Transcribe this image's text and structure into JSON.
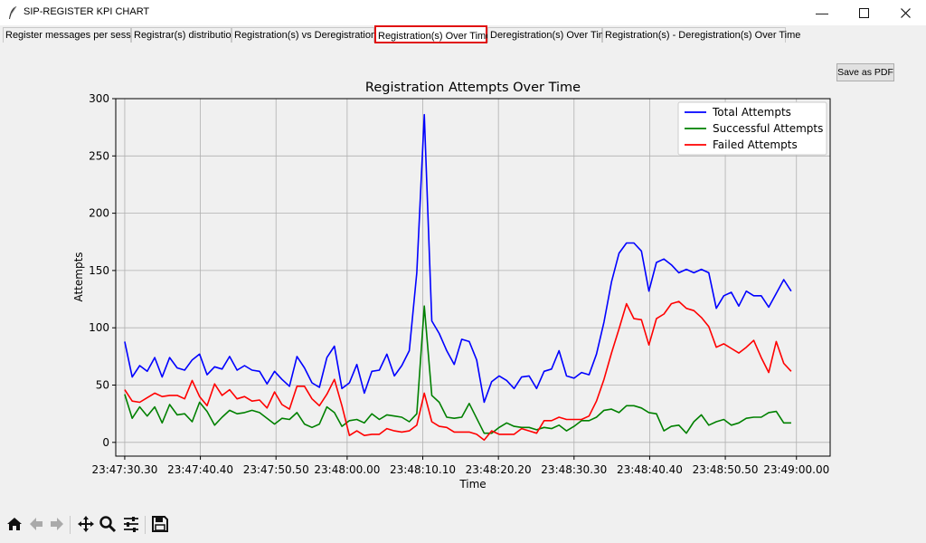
{
  "window": {
    "title": "SIP-REGISTER KPI CHART",
    "minimize": "—",
    "maximize": "☐",
    "close": "✕"
  },
  "tabs": [
    "Register messages per session",
    "Registrar(s) distribution",
    "Registration(s) vs Deregistration(s)",
    "Registration(s) Over Time",
    "Deregistration(s) Over Time",
    "Registration(s) - Deregistration(s) Over Time"
  ],
  "active_tab_index": 3,
  "save_pdf_label": "Save as PDF",
  "toolbar": [
    {
      "name": "home-icon"
    },
    {
      "name": "back-arrow-icon"
    },
    {
      "name": "forward-arrow-icon"
    },
    {
      "name": "pan-icon"
    },
    {
      "name": "zoom-icon"
    },
    {
      "name": "configure-subplots-icon"
    },
    {
      "name": "save-icon"
    }
  ],
  "chart_data": {
    "type": "line",
    "title": "Registration Attempts Over Time",
    "xlabel": "Time",
    "ylabel": "Attempts",
    "ylim": [
      -12,
      300
    ],
    "yticks": [
      0,
      50,
      100,
      150,
      200,
      250,
      300
    ],
    "xlim": [
      -1.2,
      94.2
    ],
    "xticks": [
      {
        "label": "23:47:30.30",
        "x": 0
      },
      {
        "label": "23:47:40.40",
        "x": 10.1
      },
      {
        "label": "23:47:50.50",
        "x": 20.2
      },
      {
        "label": "23:48:00.00",
        "x": 29.7
      },
      {
        "label": "23:48:10.10",
        "x": 39.8
      },
      {
        "label": "23:48:20.20",
        "x": 49.9
      },
      {
        "label": "23:48:30.30",
        "x": 60
      },
      {
        "label": "23:48:40.40",
        "x": 70.1
      },
      {
        "label": "23:48:50.50",
        "x": 80.2
      },
      {
        "label": "23:49:00.00",
        "x": 89.7
      }
    ],
    "grid": true,
    "legend_position": "upper right",
    "series": [
      {
        "name": "Total Attempts",
        "color": "#0000ff",
        "values": [
          88,
          57,
          67,
          62,
          74,
          57,
          74,
          65,
          63,
          72,
          77,
          59,
          66,
          64,
          75,
          63,
          67,
          63,
          62,
          51,
          62,
          55,
          49,
          75,
          65,
          52,
          48,
          74,
          84,
          47,
          52,
          68,
          43,
          62,
          63,
          77,
          58,
          67,
          80,
          148,
          286,
          106,
          95,
          80,
          68,
          90,
          88,
          72,
          35,
          53,
          58,
          54,
          47,
          57,
          58,
          47,
          62,
          64,
          80,
          58,
          56,
          61,
          59,
          77,
          105,
          140,
          165,
          174,
          174,
          167,
          132,
          157,
          160,
          155,
          148,
          151,
          148,
          151,
          148,
          117,
          128,
          131,
          119,
          132,
          128,
          128,
          118,
          130,
          142,
          132
        ]
      },
      {
        "name": "Successful Attempts",
        "color": "#008000",
        "values": [
          42,
          21,
          31,
          23,
          31,
          17,
          33,
          24,
          25,
          18,
          35,
          27,
          15,
          22,
          28,
          25,
          26,
          28,
          26,
          21,
          16,
          21,
          20,
          26,
          16,
          13,
          16,
          31,
          26,
          14,
          19,
          20,
          17,
          25,
          20,
          24,
          23,
          22,
          18,
          25,
          119,
          41,
          35,
          22,
          21,
          22,
          34,
          21,
          8,
          8,
          13,
          17,
          14,
          13,
          13,
          11,
          13,
          12,
          15,
          10,
          14,
          19,
          19,
          22,
          28,
          29,
          26,
          32,
          32,
          30,
          26,
          25,
          10,
          14,
          15,
          8,
          18,
          24,
          15,
          18,
          20,
          15,
          17,
          21,
          22,
          22,
          26,
          27,
          17,
          17
        ]
      },
      {
        "name": "Failed Attempts",
        "color": "#ff0000",
        "values": [
          46,
          36,
          35,
          39,
          43,
          40,
          41,
          41,
          38,
          54,
          40,
          32,
          51,
          41,
          46,
          38,
          40,
          36,
          37,
          30,
          44,
          33,
          29,
          49,
          49,
          38,
          32,
          42,
          55,
          32,
          6,
          10,
          6,
          7,
          7,
          12,
          10,
          9,
          10,
          15,
          43,
          18,
          14,
          13,
          9,
          9,
          9,
          7,
          2,
          10,
          7,
          7,
          7,
          12,
          10,
          8,
          19,
          19,
          22,
          20,
          20,
          20,
          23,
          36,
          55,
          78,
          99,
          121,
          108,
          107,
          85,
          108,
          112,
          121,
          123,
          117,
          115,
          109,
          101,
          83,
          86,
          82,
          78,
          83,
          89,
          74,
          61,
          88,
          69,
          62
        ]
      }
    ]
  }
}
